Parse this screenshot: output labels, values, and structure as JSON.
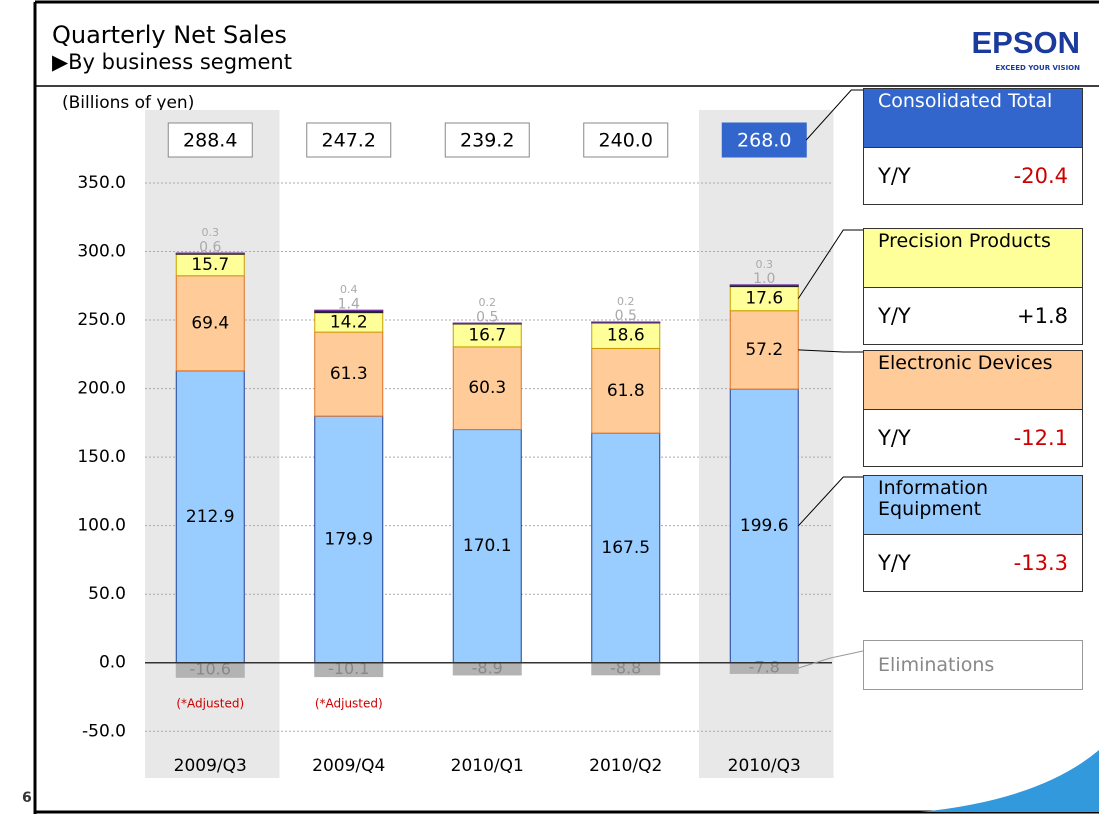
{
  "page_number": "6",
  "logo": {
    "name": "EPSON",
    "tagline": "EXCEED YOUR VISION"
  },
  "chart_data": {
    "type": "bar",
    "stacked": true,
    "title": "Quarterly Net Sales",
    "subtitle": "▶By business segment",
    "y_label": "(Billions of yen)",
    "yoy_label": "Y/Y",
    "categories": [
      "2009/Q3",
      "2009/Q4",
      "2010/Q1",
      "2010/Q2",
      "2010/Q3"
    ],
    "series": [
      {
        "name": "Information Equipment",
        "color": "#99ccff",
        "values": [
          212.9,
          179.9,
          170.1,
          167.5,
          199.6
        ],
        "yoy": -13.3
      },
      {
        "name": "Electronic Devices",
        "color": "#ffcc99",
        "values": [
          69.4,
          61.3,
          60.3,
          61.8,
          57.2
        ],
        "yoy": -12.1
      },
      {
        "name": "Precision Products",
        "color": "#ffff99",
        "values": [
          15.7,
          14.2,
          16.7,
          18.6,
          17.6
        ],
        "yoy": {
          "value": 1.8,
          "label": "+1.8"
        }
      },
      {
        "color": "#222222",
        "values": [
          0.6,
          1.4,
          0.5,
          0.5,
          1.0
        ],
        "value_labels": [
          "0.6",
          "1.4",
          "0.5",
          "0.5",
          "1.0"
        ]
      },
      {
        "color": "#7030a0",
        "values": [
          0.3,
          0.4,
          0.2,
          0.2,
          0.3
        ]
      },
      {
        "name": "Eliminations",
        "color": "#b3b3b3",
        "values": [
          -10.6,
          -10.1,
          -8.9,
          -8.8,
          -7.8
        ]
      }
    ],
    "totals": {
      "name": "Consolidated Total",
      "color": "#3366cc",
      "values": [
        288.4,
        247.2,
        239.2,
        240.0,
        268.0
      ],
      "value_labels": [
        "288.4",
        "247.2",
        "239.2",
        "240.0",
        "268.0"
      ],
      "yoy": -20.4
    },
    "annotations": [
      {
        "text": "(*Adjusted)",
        "category": 0
      },
      {
        "text": "(*Adjusted)",
        "category": 1
      }
    ],
    "ylim": [
      -60,
      400
    ],
    "yticks": [
      {
        "value": -50,
        "label": "-50.0"
      },
      {
        "value": 0,
        "label": "0.0"
      },
      {
        "value": 50,
        "label": "50.0"
      },
      {
        "value": 100,
        "label": "100.0"
      },
      {
        "value": 150,
        "label": "150.0"
      },
      {
        "value": 200,
        "label": "200.0"
      },
      {
        "value": 250,
        "label": "250.0"
      },
      {
        "value": 300,
        "label": "300.0"
      },
      {
        "value": 350,
        "label": "350.0"
      }
    ],
    "grid": true
  }
}
